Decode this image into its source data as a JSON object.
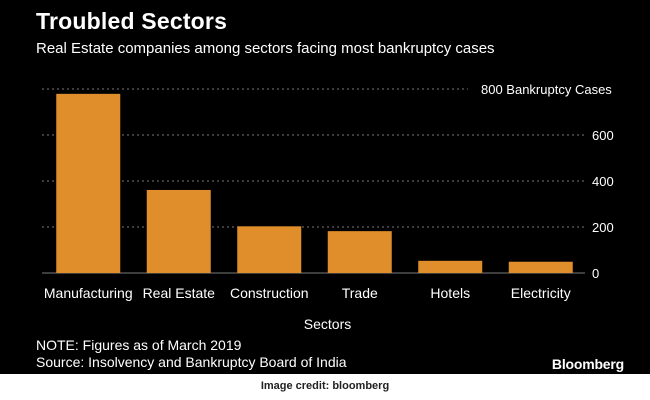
{
  "colors": {
    "background": "#000000",
    "bar": "#E08E2C",
    "text": "#ffffff",
    "grid": "#7a7a7a"
  },
  "chart_data": {
    "type": "bar",
    "title": "Troubled Sectors",
    "subtitle": "Real Estate companies among sectors facing most bankruptcy cases",
    "xlabel": "Sectors",
    "ylabel": "",
    "top_tick_label": "800 Bankruptcy Cases",
    "categories": [
      "Manufacturing",
      "Real Estate",
      "Construction",
      "Trade",
      "Hotels",
      "Electricity"
    ],
    "values": [
      779,
      361,
      203,
      182,
      53,
      49
    ],
    "ylim": [
      0,
      800
    ],
    "yticks": [
      0,
      200,
      400,
      600,
      800
    ],
    "grid": true,
    "legend": "none"
  },
  "footer": {
    "note": "NOTE: Figures as of March 2019",
    "source": "Source: Insolvency and Bankruptcy Board of India",
    "brand": "Bloomberg"
  },
  "credit": "Image credit: bloomberg"
}
